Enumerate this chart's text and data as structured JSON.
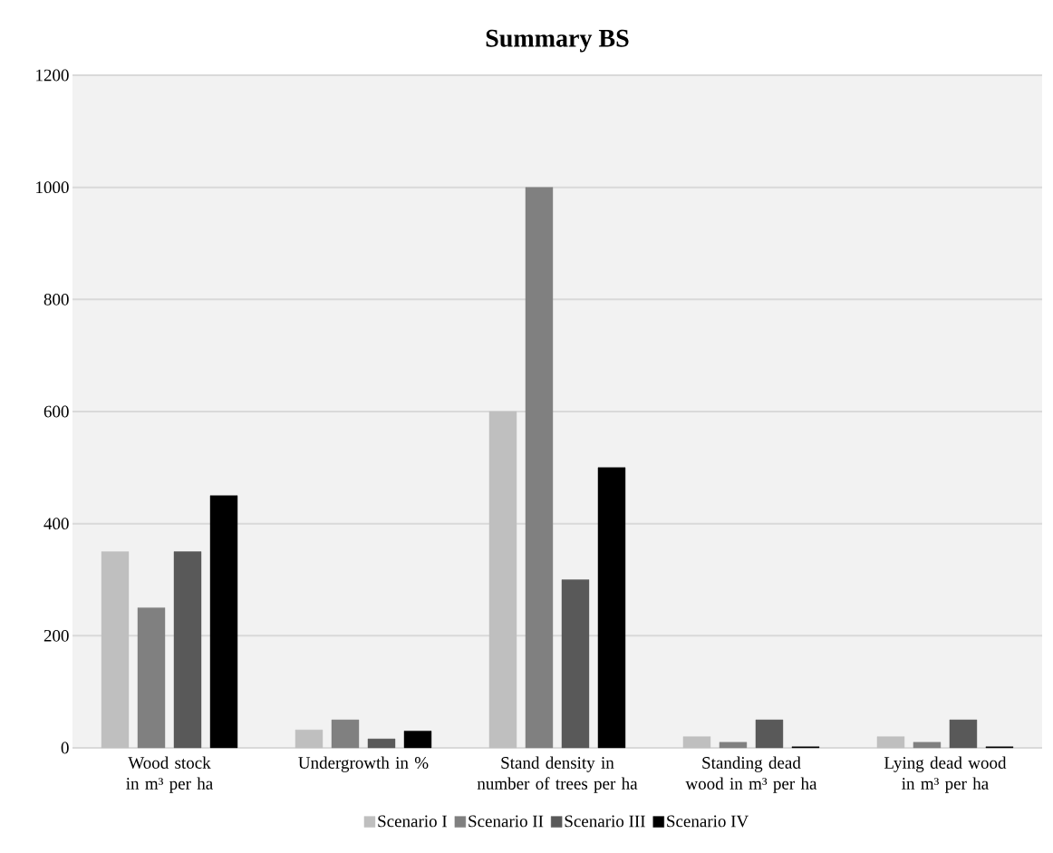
{
  "chart_data": {
    "type": "bar",
    "title": "Summary BS",
    "categories": [
      "Wood stock in m³ per ha",
      "Undergrowth in %",
      "Stand density in number of trees per ha",
      "Standing dead wood in m³ per ha",
      "Lying dead wood in m³ per ha"
    ],
    "series": [
      {
        "name": "Scenario I",
        "color": "#bfbfbf",
        "values": [
          350,
          32,
          600,
          20,
          20
        ]
      },
      {
        "name": "Scenario II",
        "color": "#808080",
        "values": [
          250,
          50,
          1000,
          10,
          10
        ]
      },
      {
        "name": "Scenario III",
        "color": "#595959",
        "values": [
          350,
          16,
          300,
          50,
          50
        ]
      },
      {
        "name": "Scenario IV",
        "color": "#000000",
        "values": [
          450,
          30,
          500,
          2,
          2
        ]
      }
    ],
    "ylim": [
      0,
      1200
    ],
    "yticks": [
      0,
      200,
      400,
      600,
      800,
      1000,
      1200
    ],
    "grid": "y",
    "legend": "bottom"
  }
}
